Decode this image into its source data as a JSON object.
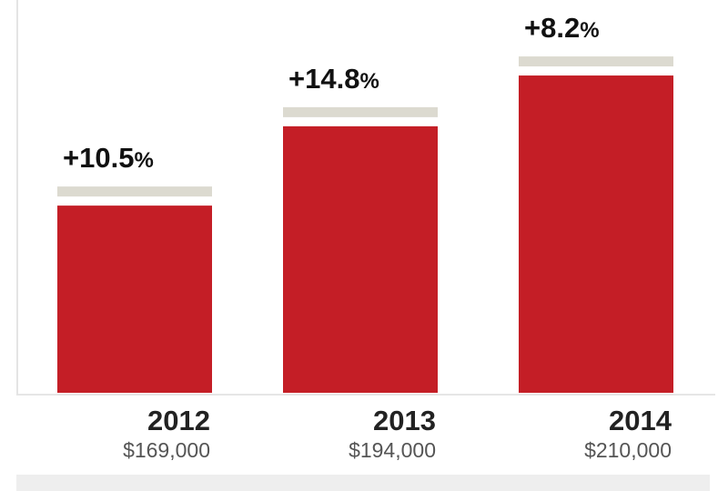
{
  "chart_data": {
    "type": "bar",
    "title": "",
    "xlabel": "",
    "ylabel": "",
    "categories": [
      "2012",
      "2013",
      "2014"
    ],
    "values": [
      169000,
      194000,
      210000
    ],
    "value_labels": [
      "$169,000",
      "$194,000",
      "$210,000"
    ],
    "change_labels": [
      "+10.5%",
      "+14.8%",
      "+8.2%"
    ],
    "ylim": [
      110000,
      233800
    ],
    "grid": false,
    "colors": {
      "bar": "#c41e26",
      "cap": "#dcdad0",
      "text": "#111111",
      "subtext": "#555555"
    }
  }
}
